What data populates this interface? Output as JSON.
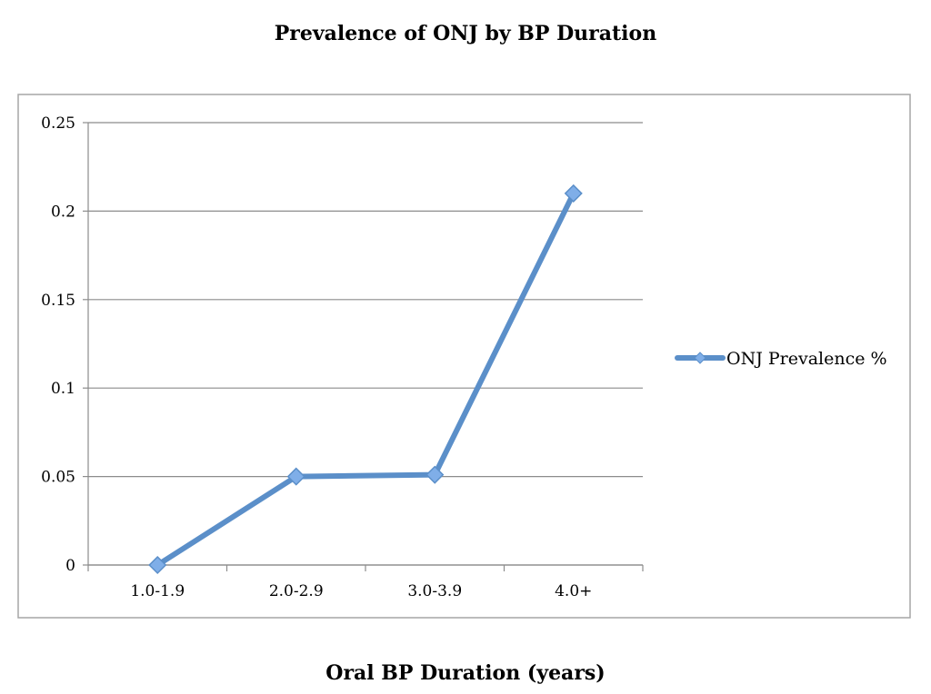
{
  "chart_data": {
    "type": "line",
    "title": "Prevalence of ONJ by BP Duration",
    "xlabel": "Oral BP Duration (years)",
    "ylabel": "",
    "categories": [
      "1.0-1.9",
      "2.0-2.9",
      "3.0-3.9",
      "4.0+"
    ],
    "series": [
      {
        "name": "ONJ Prevalence %",
        "values": [
          0,
          0.05,
          0.051,
          0.21
        ],
        "color": "#5B8FC9",
        "marker_color": "#7FAEE8"
      }
    ],
    "ylim": [
      0,
      0.25
    ],
    "yticks": [
      0,
      0.05,
      0.1,
      0.15,
      0.2,
      0.25
    ],
    "ytick_labels": [
      "0",
      "0.05",
      "0.1",
      "0.15",
      "0.2",
      "0.25"
    ],
    "grid": true,
    "legend_position": "right"
  }
}
